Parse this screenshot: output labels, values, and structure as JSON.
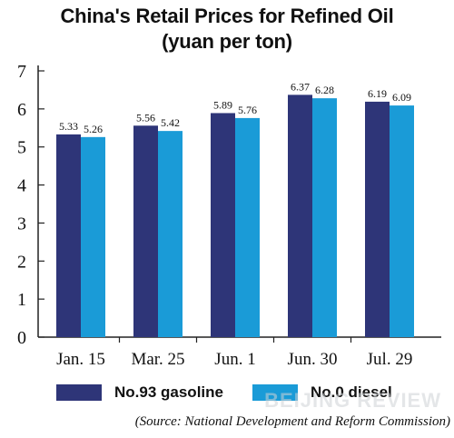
{
  "chart_data": {
    "type": "bar",
    "title": "China's Retail Prices for Refined Oil",
    "subtitle": "(yuan per ton)",
    "categories": [
      "Jan. 15",
      "Mar. 25",
      "Jun. 1",
      "Jun. 30",
      "Jul. 29"
    ],
    "series": [
      {
        "name": "No.93 gasoline",
        "color": "#2e3578",
        "values": [
          5.33,
          5.56,
          5.89,
          6.37,
          6.19
        ]
      },
      {
        "name": "No.0 diesel",
        "color": "#1a9bd7",
        "values": [
          5.26,
          5.42,
          5.76,
          6.28,
          6.09
        ]
      }
    ],
    "data_labels": [
      [
        "5.33",
        "5.56",
        "5.89",
        "6.37",
        "6.19"
      ],
      [
        "5.26",
        "5.42",
        "5.76",
        "6.28",
        "6.09"
      ]
    ],
    "y_ticks": [
      "0",
      "1",
      "2",
      "3",
      "4",
      "5",
      "6",
      "7"
    ],
    "ylim": [
      0,
      7
    ],
    "xlabel": "",
    "ylabel": "",
    "grid": false,
    "legend_position": "bottom"
  },
  "watermark": "BEIJING REVIEW",
  "source": "(Source: National Development and Reform Commission)"
}
